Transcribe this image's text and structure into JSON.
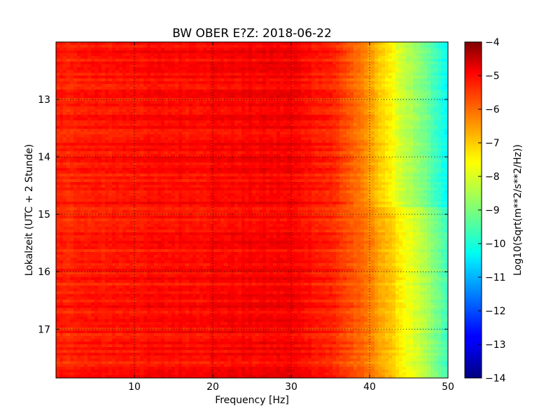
{
  "chart_data": {
    "type": "heatmap",
    "title": "BW OBER E?Z: 2018-06-22",
    "xlabel": "Frequency [Hz]",
    "ylabel": "Lokalzeit (UTC + 2 Stunde)",
    "xlim": [
      0,
      50
    ],
    "ylim": [
      12.0,
      17.85
    ],
    "y_inverted": true,
    "grid": true,
    "x_ticks": [
      10,
      20,
      30,
      40,
      50
    ],
    "x_tick_labels": [
      "10",
      "20",
      "30",
      "40",
      "50"
    ],
    "y_ticks": [
      13,
      14,
      15,
      16,
      17
    ],
    "y_tick_labels": [
      "13",
      "14",
      "15",
      "16",
      "17"
    ],
    "colormap": "jet",
    "colorbar": {
      "label": "Log10(Sqrt(m**2/s**2/Hz))",
      "range": [
        -14,
        -4
      ],
      "ticks": [
        -4,
        -5,
        -6,
        -7,
        -8,
        -9,
        -10,
        -11,
        -12,
        -13,
        -14
      ],
      "tick_labels": [
        "−4",
        "−5",
        "−6",
        "−7",
        "−8",
        "−9",
        "−10",
        "−11",
        "−12",
        "−13",
        "−14"
      ]
    },
    "frequency_profile": {
      "frequency_hz": [
        0,
        10,
        20,
        30,
        35,
        38,
        40,
        42,
        44,
        46,
        48,
        50
      ],
      "log10_amplitude": [
        -5.6,
        -5.4,
        -5.3,
        -5.2,
        -5.6,
        -6.1,
        -6.5,
        -7.0,
        -7.6,
        -8.2,
        -8.9,
        -9.7
      ]
    }
  }
}
